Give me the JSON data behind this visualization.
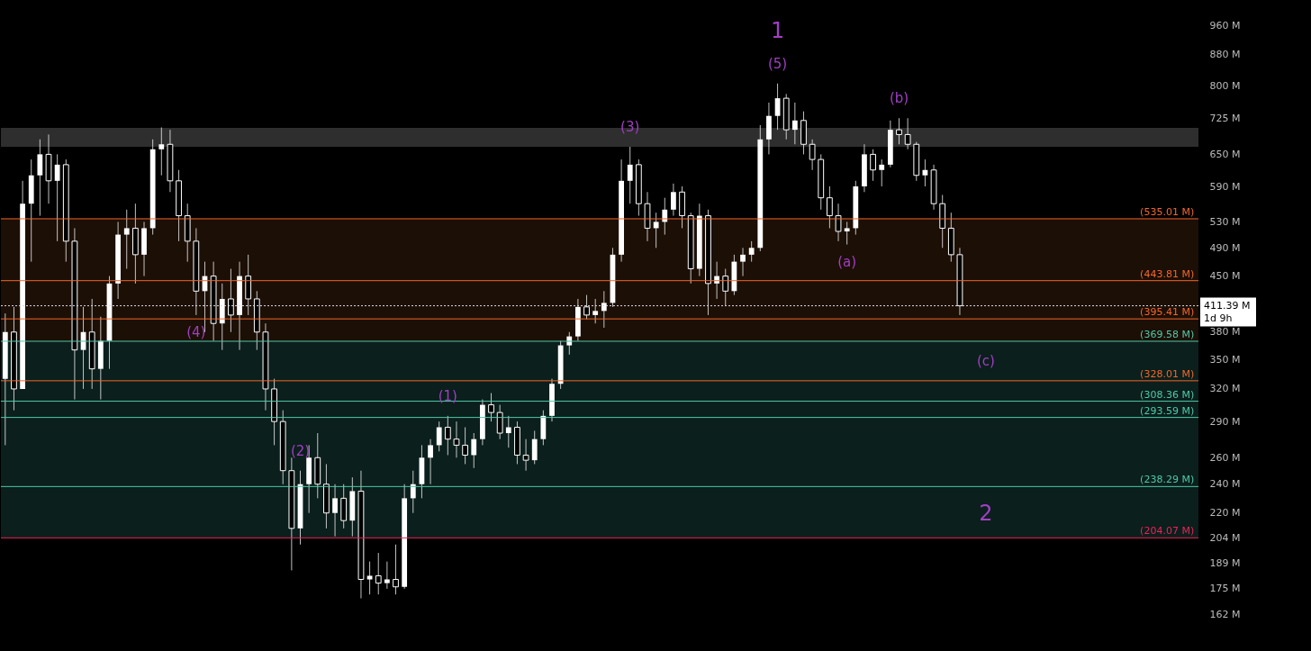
{
  "chart_data": {
    "type": "candlestick",
    "log": true,
    "color": "#ffffff",
    "tick_labels": "y",
    "grid": false,
    "ylim": [
      145,
      1036
    ],
    "yticks": [
      {
        "value": 162,
        "label": "162 M"
      },
      {
        "value": 175,
        "label": "175 M"
      },
      {
        "value": 189,
        "label": "189 M"
      },
      {
        "value": 204,
        "label": "204 M"
      },
      {
        "value": 220,
        "label": "220 M"
      },
      {
        "value": 240,
        "label": "240 M"
      },
      {
        "value": 260,
        "label": "260 M"
      },
      {
        "value": 290,
        "label": "290 M"
      },
      {
        "value": 320,
        "label": "320 M"
      },
      {
        "value": 350,
        "label": "350 M"
      },
      {
        "value": 380,
        "label": "380 M"
      },
      {
        "value": 450,
        "label": "450 M"
      },
      {
        "value": 490,
        "label": "490 M"
      },
      {
        "value": 530,
        "label": "530 M"
      },
      {
        "value": 590,
        "label": "590 M"
      },
      {
        "value": 650,
        "label": "650 M"
      },
      {
        "value": 725,
        "label": "725 M"
      },
      {
        "value": 800,
        "label": "800 M"
      },
      {
        "value": 880,
        "label": "880 M"
      },
      {
        "value": 960,
        "label": "960 M"
      }
    ],
    "categories": [
      null,
      null,
      null,
      null,
      null,
      null,
      null,
      null,
      null,
      null,
      null,
      null,
      null,
      null,
      null,
      null,
      null,
      null,
      null,
      null,
      null,
      null,
      null,
      null,
      null,
      null,
      null,
      null,
      null,
      null,
      null,
      null,
      null,
      null,
      null,
      null,
      null,
      null,
      null,
      null,
      null,
      null,
      null,
      null,
      null,
      null,
      null,
      null,
      null,
      null,
      null,
      null,
      null,
      null,
      null,
      null,
      null,
      null,
      null,
      null,
      null,
      null,
      null,
      null,
      null,
      null,
      null,
      null,
      null,
      null,
      null,
      null,
      null,
      null,
      null,
      null,
      null,
      null,
      null,
      null,
      null,
      null,
      null,
      null,
      null,
      null,
      null,
      null,
      null,
      null,
      null,
      null,
      null,
      null,
      null,
      null,
      null,
      null,
      null,
      null,
      null,
      null,
      null,
      null,
      null,
      null,
      null,
      null,
      null,
      null,
      null,
      null,
      null,
      null,
      null,
      null,
      null,
      null,
      null,
      null,
      null,
      null,
      null,
      null,
      null,
      null,
      null,
      null,
      null,
      null,
      null,
      null,
      null,
      null,
      null,
      null,
      null,
      null
    ],
    "ohlc": [
      [
        330,
        402,
        270,
        380
      ],
      [
        380,
        410,
        300,
        320
      ],
      [
        320,
        600,
        320,
        560
      ],
      [
        560,
        640,
        470,
        610
      ],
      [
        610,
        680,
        540,
        650
      ],
      [
        650,
        690,
        560,
        600
      ],
      [
        600,
        650,
        500,
        630
      ],
      [
        630,
        640,
        470,
        500
      ],
      [
        500,
        520,
        310,
        360
      ],
      [
        360,
        410,
        320,
        380
      ],
      [
        380,
        420,
        320,
        340
      ],
      [
        340,
        398,
        310,
        370
      ],
      [
        370,
        450,
        340,
        440
      ],
      [
        440,
        530,
        420,
        510
      ],
      [
        510,
        550,
        460,
        520
      ],
      [
        520,
        560,
        440,
        480
      ],
      [
        480,
        530,
        450,
        520
      ],
      [
        520,
        680,
        510,
        660
      ],
      [
        660,
        705,
        610,
        670
      ],
      [
        670,
        700,
        580,
        600
      ],
      [
        600,
        620,
        500,
        540
      ],
      [
        540,
        560,
        470,
        500
      ],
      [
        500,
        520,
        400,
        430
      ],
      [
        430,
        470,
        380,
        450
      ],
      [
        450,
        470,
        370,
        390
      ],
      [
        390,
        440,
        360,
        420
      ],
      [
        420,
        460,
        380,
        400
      ],
      [
        400,
        470,
        360,
        450
      ],
      [
        450,
        480,
        400,
        420
      ],
      [
        420,
        430,
        360,
        380
      ],
      [
        380,
        390,
        300,
        320
      ],
      [
        320,
        330,
        270,
        290
      ],
      [
        290,
        300,
        240,
        250
      ],
      [
        250,
        260,
        185,
        210
      ],
      [
        210,
        250,
        200,
        240
      ],
      [
        240,
        270,
        220,
        260
      ],
      [
        260,
        280,
        230,
        240
      ],
      [
        240,
        255,
        210,
        220
      ],
      [
        220,
        240,
        205,
        230
      ],
      [
        230,
        240,
        210,
        215
      ],
      [
        215,
        245,
        205,
        235
      ],
      [
        235,
        250,
        170,
        180
      ],
      [
        180,
        190,
        172,
        182
      ],
      [
        182,
        195,
        172,
        178
      ],
      [
        178,
        190,
        175,
        180
      ],
      [
        180,
        200,
        172,
        176
      ],
      [
        176,
        240,
        175,
        230
      ],
      [
        230,
        250,
        220,
        240
      ],
      [
        240,
        270,
        230,
        260
      ],
      [
        260,
        275,
        240,
        270
      ],
      [
        270,
        290,
        265,
        285
      ],
      [
        285,
        295,
        262,
        275
      ],
      [
        275,
        290,
        260,
        270
      ],
      [
        270,
        285,
        255,
        262
      ],
      [
        262,
        280,
        252,
        275
      ],
      [
        275,
        310,
        270,
        305
      ],
      [
        305,
        316,
        290,
        298
      ],
      [
        298,
        305,
        275,
        280
      ],
      [
        280,
        295,
        268,
        285
      ],
      [
        285,
        290,
        255,
        262
      ],
      [
        262,
        275,
        250,
        258
      ],
      [
        258,
        282,
        255,
        275
      ],
      [
        275,
        300,
        270,
        295
      ],
      [
        295,
        330,
        290,
        325
      ],
      [
        325,
        370,
        320,
        365
      ],
      [
        365,
        380,
        355,
        375
      ],
      [
        375,
        420,
        370,
        410
      ],
      [
        410,
        425,
        395,
        400
      ],
      [
        400,
        420,
        390,
        405
      ],
      [
        405,
        430,
        385,
        415
      ],
      [
        415,
        490,
        410,
        480
      ],
      [
        480,
        640,
        470,
        600
      ],
      [
        600,
        665,
        560,
        630
      ],
      [
        630,
        640,
        540,
        560
      ],
      [
        560,
        580,
        500,
        520
      ],
      [
        520,
        545,
        490,
        530
      ],
      [
        530,
        570,
        510,
        550
      ],
      [
        550,
        595,
        540,
        580
      ],
      [
        580,
        590,
        520,
        540
      ],
      [
        540,
        545,
        440,
        460
      ],
      [
        460,
        560,
        450,
        540
      ],
      [
        540,
        550,
        400,
        440
      ],
      [
        440,
        470,
        420,
        450
      ],
      [
        450,
        460,
        412,
        430
      ],
      [
        430,
        480,
        425,
        470
      ],
      [
        470,
        490,
        450,
        480
      ],
      [
        480,
        500,
        470,
        490
      ],
      [
        490,
        710,
        485,
        680
      ],
      [
        680,
        760,
        650,
        730
      ],
      [
        730,
        805,
        700,
        770
      ],
      [
        770,
        780,
        680,
        700
      ],
      [
        700,
        760,
        670,
        720
      ],
      [
        720,
        740,
        650,
        670
      ],
      [
        670,
        680,
        620,
        640
      ],
      [
        640,
        650,
        550,
        570
      ],
      [
        570,
        590,
        520,
        540
      ],
      [
        540,
        560,
        500,
        515
      ],
      [
        515,
        530,
        495,
        520
      ],
      [
        520,
        600,
        510,
        590
      ],
      [
        590,
        670,
        580,
        650
      ],
      [
        650,
        660,
        600,
        620
      ],
      [
        620,
        640,
        590,
        630
      ],
      [
        630,
        720,
        625,
        700
      ],
      [
        700,
        725,
        670,
        690
      ],
      [
        690,
        725,
        660,
        670
      ],
      [
        670,
        675,
        600,
        610
      ],
      [
        610,
        640,
        590,
        620
      ],
      [
        620,
        630,
        550,
        560
      ],
      [
        560,
        575,
        490,
        520
      ],
      [
        520,
        545,
        470,
        480
      ],
      [
        480,
        490,
        400,
        411.39
      ],
      null,
      null,
      null,
      null,
      null,
      null,
      null,
      null,
      null,
      null,
      null,
      null,
      null,
      null,
      null,
      null,
      null,
      null,
      null,
      null,
      null,
      null,
      null,
      null,
      null,
      null,
      null
    ],
    "bands": [
      {
        "axis": "y",
        "from": 665,
        "to": 704,
        "color": "#2e2e2e"
      },
      {
        "axis": "y",
        "from": 328.01,
        "to": 535.01,
        "color": "#1c0f06",
        "label": "(c)"
      },
      {
        "axis": "y",
        "from": 204.07,
        "to": 369.58,
        "color": "#0b1f1c",
        "label": "2"
      }
    ],
    "ref_lines": [
      {
        "axis": "y",
        "value": 411.39,
        "label": "411.39 M",
        "color": "#dddddd",
        "line_style": "dotted"
      },
      {
        "axis": "y",
        "value": 535.01,
        "label": "(535.01 M)",
        "color": "#f2672a"
      },
      {
        "axis": "y",
        "value": 443.81,
        "label": "(443.81 M)",
        "color": "#f2672a"
      },
      {
        "axis": "y",
        "value": 395.41,
        "label": "(395.41 M)",
        "color": "#f2672a"
      },
      {
        "axis": "y",
        "value": 328.01,
        "label": "(328.01 M)",
        "color": "#f2672a"
      },
      {
        "axis": "y",
        "value": 369.58,
        "label": "(369.58 M)",
        "color": "#4fc9a9"
      },
      {
        "axis": "y",
        "value": 308.36,
        "label": "(308.36 M)",
        "color": "#4fc9a9"
      },
      {
        "axis": "y",
        "value": 293.59,
        "label": "(293.59 M)",
        "color": "#4fc9a9"
      },
      {
        "axis": "y",
        "value": 238.29,
        "label": "(238.29 M)",
        "color": "#4fc9a9"
      },
      {
        "axis": "y",
        "value": 204.07,
        "label": "(204.07 M)",
        "color": "#e8245a"
      }
    ],
    "annotations": [
      {
        "text": "(5)",
        "y": 805
      },
      {
        "text": "1",
        "y": 805
      },
      {
        "text": "(b)",
        "y": 725
      },
      {
        "text": "(3)",
        "y": 665
      },
      {
        "text": "(a)",
        "y": 495
      },
      {
        "text": "(4)",
        "y": 400
      },
      {
        "text": "(1)",
        "y": 295
      },
      {
        "text": "(2)",
        "y": 250
      },
      "1d 9h"
    ]
  }
}
